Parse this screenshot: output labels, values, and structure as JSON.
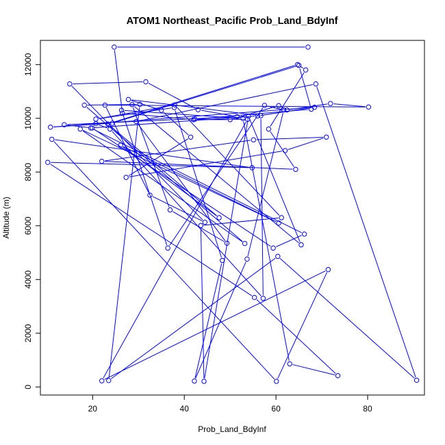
{
  "chart_data": {
    "type": "line",
    "title": "ATOM1 Northeast_Pacific Prob_Land_BdyInf",
    "xlabel": "Prob_Land_BdyInf",
    "ylabel": "Altitude (m)",
    "xlim": [
      8.6,
      92.4
    ],
    "ylim": [
      -300,
      12900
    ],
    "xticks": [
      20,
      40,
      60,
      80
    ],
    "yticks": [
      0,
      2000,
      4000,
      6000,
      8000,
      10000,
      12000
    ],
    "grid": false,
    "line_color": "#0000ff",
    "marker": "open-circle",
    "series": [
      {
        "x": [
          67.0,
          24.7,
          26.5,
          42.0,
          50.0,
          60.6,
          62.4,
          71.9,
          80.2,
          22.7,
          32.5,
          44.5,
          15.0,
          31.6,
          43.0,
          51.5,
          13.8,
          19.9,
          59.4,
          66.2,
          19.6,
          56.0,
          68.4,
          10.8,
          24.3,
          65.0,
          67.7,
          42.3,
          53.8,
          22.0,
          71.4,
          60.1,
          11.1,
          54.8,
          10.2,
          55.3,
          73.5,
          63.0,
          52.8,
          26.3,
          36.4,
          57.5,
          61.7,
          53.7,
          42.2,
          48.3,
          37.8,
          20.7,
          37.9,
          61.2,
          43.6,
          44.3,
          54.0,
          65.5,
          28.6,
          36.9,
          49.3,
          29.5,
          68.7,
          90.7,
          60.4,
          23.5,
          30.3,
          18.2,
          53.2,
          17.3,
          60.6,
          26.1,
          47.6,
          23.3,
          64.7,
          66.5,
          58.4,
          64.3,
          22.0,
          55.1,
          71.0,
          62.0,
          27.3,
          41.4,
          35.0,
          27.8,
          56.7,
          57.2,
          23.8,
          20.7
        ],
        "y": [
          12650,
          12650,
          10190,
          9950,
          9950,
          10470,
          10310,
          10550,
          10420,
          10490,
          7140,
          6130,
          11280,
          11360,
          10320,
          10060,
          9760,
          9640,
          5170,
          5690,
          9640,
          10090,
          10410,
          9670,
          9820,
          11970,
          10340,
          9970,
          9960,
          230,
          4370,
          210,
          9220,
          8160,
          8360,
          3330,
          420,
          860,
          9990,
          10300,
          5170,
          10480,
          10310,
          4760,
          220,
          4710,
          10400,
          9970,
          10500,
          6300,
          6010,
          210,
          10080,
          5290,
          10510,
          6590,
          5350,
          9880,
          11280,
          250,
          4860,
          240,
          10520,
          10490,
          5340,
          9600,
          6100,
          9000,
          6300,
          9790,
          12000,
          11800,
          9600,
          8100,
          8400,
          9200,
          9300,
          8800,
          7800,
          9300,
          10300,
          10700,
          10100,
          3300,
          9600,
          9800
        ]
      }
    ]
  }
}
